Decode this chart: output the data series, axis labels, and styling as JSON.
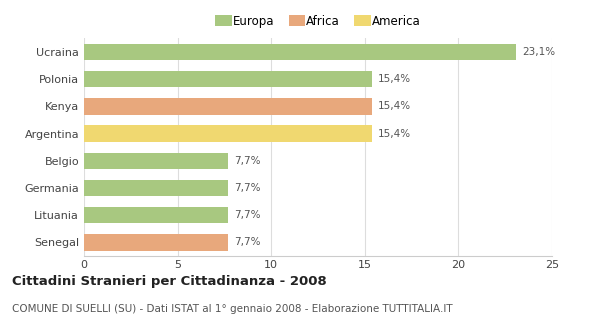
{
  "categories": [
    "Ucraina",
    "Polonia",
    "Kenya",
    "Argentina",
    "Belgio",
    "Germania",
    "Lituania",
    "Senegal"
  ],
  "values": [
    23.1,
    15.4,
    15.4,
    15.4,
    7.7,
    7.7,
    7.7,
    7.7
  ],
  "labels": [
    "23,1%",
    "15,4%",
    "15,4%",
    "15,4%",
    "7,7%",
    "7,7%",
    "7,7%",
    "7,7%"
  ],
  "colors": [
    "#a8c880",
    "#a8c880",
    "#e8a87c",
    "#f0d870",
    "#a8c880",
    "#a8c880",
    "#a8c880",
    "#e8a87c"
  ],
  "legend_labels": [
    "Europa",
    "Africa",
    "America"
  ],
  "legend_colors": [
    "#a8c880",
    "#e8a87c",
    "#f0d870"
  ],
  "xlim": [
    0,
    25
  ],
  "xticks": [
    0,
    5,
    10,
    15,
    20,
    25
  ],
  "title": "Cittadini Stranieri per Cittadinanza - 2008",
  "subtitle": "COMUNE DI SUELLI (SU) - Dati ISTAT al 1° gennaio 2008 - Elaborazione TUTTITALIA.IT",
  "background_color": "#ffffff",
  "bar_height": 0.6,
  "title_fontsize": 9.5,
  "subtitle_fontsize": 7.5,
  "label_fontsize": 7.5,
  "tick_fontsize": 8,
  "legend_fontsize": 8.5
}
